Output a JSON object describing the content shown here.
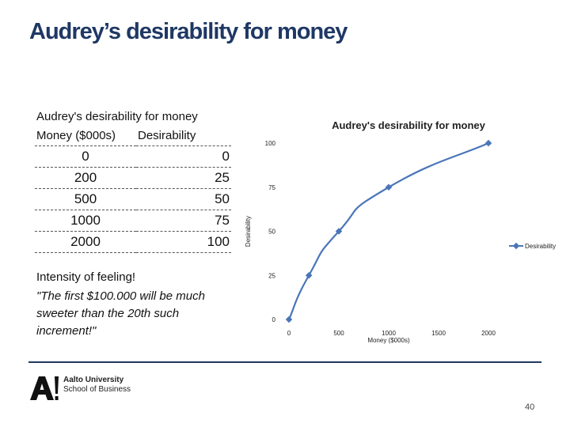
{
  "slide": {
    "title": "Audrey’s desirability for money",
    "page_number": "40"
  },
  "table": {
    "caption": "Audrey's desirability for money",
    "headers": [
      "Money ($000s)",
      "Desirability"
    ],
    "rows": [
      [
        "0",
        "0"
      ],
      [
        "200",
        "25"
      ],
      [
        "500",
        "50"
      ],
      [
        "1000",
        "75"
      ],
      [
        "2000",
        "100"
      ]
    ]
  },
  "notes": {
    "heading": "Intensity of feeling!",
    "quote": "\"The first $100.000 will be much sweeter than the 20th such increment!\""
  },
  "logo": {
    "line1": "Aalto University",
    "line2": "School of Business",
    "mark": "A!"
  },
  "chart_data": {
    "type": "scatter",
    "title": "Audrey's desirability for money",
    "xlabel": "Money ($000s)",
    "ylabel": "Desirability",
    "xlim": [
      0,
      2000
    ],
    "ylim": [
      0,
      100
    ],
    "x_ticks": [
      0,
      500,
      1000,
      1500,
      2000
    ],
    "y_ticks": [
      0,
      25,
      50,
      75,
      100
    ],
    "grid": false,
    "legend_position": "right",
    "series": [
      {
        "name": "Desirability",
        "color": "#4a76b8",
        "x": [
          0,
          200,
          500,
          1000,
          2000
        ],
        "y": [
          0,
          25,
          50,
          75,
          100
        ]
      }
    ]
  }
}
